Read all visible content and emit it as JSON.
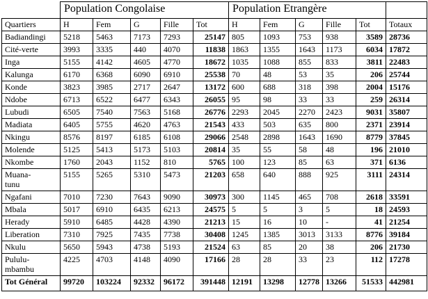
{
  "table": {
    "group_headers": {
      "congolaise": "Population Congolaise",
      "etrangere": "Population Etrangère"
    },
    "columns": {
      "quartiers": "Quartiers",
      "sub": [
        "H",
        "Fem",
        "G",
        "Fille",
        "Tot"
      ],
      "totaux": "Totaux"
    },
    "rows": [
      {
        "quartier": "Badiandingi",
        "cong": [
          "5218",
          "5463",
          "7173",
          "7293"
        ],
        "cong_tot": "25147",
        "etr": [
          "805",
          "1093",
          "753",
          "938"
        ],
        "etr_tot": "3589",
        "totaux": "28736"
      },
      {
        "quartier": "Cité-verte",
        "cong": [
          "3993",
          "3335",
          "440",
          "4070"
        ],
        "cong_tot": "11838",
        "etr": [
          "1863",
          "1355",
          "1643",
          "1173"
        ],
        "etr_tot": "6034",
        "totaux": "17872"
      },
      {
        "quartier": "Inga",
        "cong": [
          "5155",
          "4142",
          "4605",
          "4770"
        ],
        "cong_tot": "18672",
        "etr": [
          "1035",
          "1088",
          "855",
          "833"
        ],
        "etr_tot": "3811",
        "totaux": "22483"
      },
      {
        "quartier": "Kalunga",
        "cong": [
          "6170",
          "6368",
          "6090",
          "6910"
        ],
        "cong_tot": "25538",
        "etr": [
          "70",
          "48",
          "53",
          "35"
        ],
        "etr_tot": "206",
        "totaux": "25744"
      },
      {
        "quartier": "Konde",
        "cong": [
          "3823",
          "3985",
          "2717",
          "2647"
        ],
        "cong_tot": "13172",
        "etr": [
          "600",
          "688",
          "318",
          "398"
        ],
        "etr_tot": "2004",
        "totaux": "15176"
      },
      {
        "quartier": "Ndobe",
        "cong": [
          "6713",
          "6522",
          "6477",
          "6343"
        ],
        "cong_tot": "26055",
        "etr": [
          "95",
          "98",
          "33",
          "33"
        ],
        "etr_tot": "259",
        "totaux": "26314"
      },
      {
        "quartier": "Lubudi",
        "cong": [
          "6505",
          "7540",
          "7563",
          "5168"
        ],
        "cong_tot": "26776",
        "etr": [
          "2293",
          "2045",
          "2270",
          "2423"
        ],
        "etr_tot": "9031",
        "totaux": "35807"
      },
      {
        "quartier": "Madiata",
        "cong": [
          "6405",
          "5755",
          "4620",
          "4763"
        ],
        "cong_tot": "21543",
        "etr": [
          "433",
          "503",
          "635",
          "800"
        ],
        "etr_tot": "2371",
        "totaux": "23914"
      },
      {
        "quartier": "Nkingu",
        "cong": [
          "8576",
          "8197",
          "6185",
          "6108"
        ],
        "cong_tot": "29066",
        "etr": [
          "2548",
          "2898",
          "1643",
          "1690"
        ],
        "etr_tot": "8779",
        "totaux": "37845"
      },
      {
        "quartier": "Molende",
        "cong": [
          "5125",
          "5413",
          "5173",
          "5103"
        ],
        "cong_tot": "20814",
        "etr": [
          "35",
          "55",
          "58",
          "48"
        ],
        "etr_tot": "196",
        "totaux": "21010"
      },
      {
        "quartier": "Nkombe",
        "cong": [
          "1760",
          "2043",
          "1152",
          "810"
        ],
        "cong_tot": "5765",
        "etr": [
          "100",
          "123",
          "85",
          "63"
        ],
        "etr_tot": "371",
        "totaux": "6136"
      },
      {
        "quartier": "Muana-\ntunu",
        "cong": [
          "5155",
          "5265",
          "5310",
          "5473"
        ],
        "cong_tot": "21203",
        "etr": [
          "658",
          "640",
          "888",
          "925"
        ],
        "etr_tot": "3111",
        "totaux": "24314"
      },
      {
        "quartier": "Ngafani",
        "cong": [
          "7010",
          "7230",
          "7643",
          "9090"
        ],
        "cong_tot": "30973",
        "etr": [
          "300",
          "1145",
          "465",
          "708"
        ],
        "etr_tot": "2618",
        "totaux": "33591"
      },
      {
        "quartier": "Mbala",
        "cong": [
          "5017",
          "6910",
          "6435",
          "6213"
        ],
        "cong_tot": "24575",
        "etr": [
          "5",
          "5",
          "3",
          "5"
        ],
        "etr_tot": "18",
        "totaux": "24593"
      },
      {
        "quartier": "Herady",
        "cong": [
          "5910",
          "6485",
          "4428",
          "4390"
        ],
        "cong_tot": "21213",
        "etr": [
          "15",
          "16",
          "10",
          "-"
        ],
        "etr_tot": "41",
        "totaux": "21254"
      },
      {
        "quartier": "Liberation",
        "cong": [
          "7310",
          "7925",
          "7435",
          "7738"
        ],
        "cong_tot": "30408",
        "etr": [
          "1245",
          "1385",
          "3013",
          "3133"
        ],
        "etr_tot": "8776",
        "totaux": "39184"
      },
      {
        "quartier": "Nkulu",
        "cong": [
          "5650",
          "5943",
          "4738",
          "5193"
        ],
        "cong_tot": "21524",
        "etr": [
          "63",
          "85",
          "20",
          "38"
        ],
        "etr_tot": "206",
        "totaux": "21730"
      },
      {
        "quartier": "Pululu-\nmbambu",
        "cong": [
          "4225",
          "4703",
          "4148",
          "4090"
        ],
        "cong_tot": "17166",
        "etr": [
          "28",
          "28",
          "33",
          "23"
        ],
        "etr_tot": "112",
        "totaux": "17278"
      }
    ],
    "total_row": {
      "label": "Tot Général",
      "cong": [
        "99720",
        "103224",
        "92332",
        "96172"
      ],
      "cong_tot": "391448",
      "etr": [
        "12191",
        "13298",
        "12778",
        "13266"
      ],
      "etr_tot": "51533",
      "totaux": "442981"
    }
  }
}
